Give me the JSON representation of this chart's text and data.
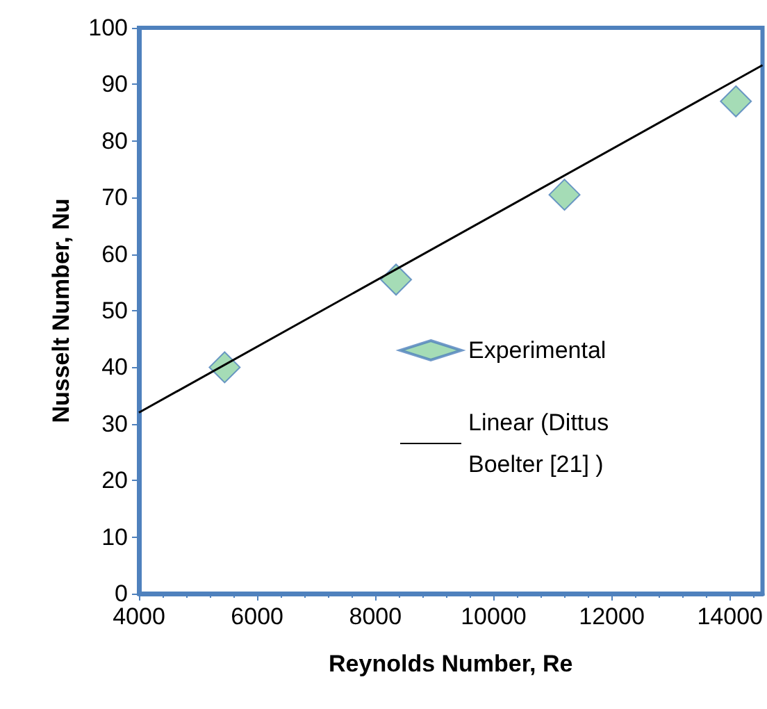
{
  "chart_data": {
    "type": "scatter",
    "xlabel": "Reynolds Number, Re",
    "ylabel": "Nusselt Number, Nu",
    "xlim": [
      4000,
      14550
    ],
    "xticks": [
      4000,
      6000,
      8000,
      10000,
      12000,
      14000
    ],
    "ylim": [
      0,
      100
    ],
    "yticks": [
      0,
      10,
      20,
      30,
      40,
      50,
      60,
      70,
      80,
      90,
      100
    ],
    "grid": false,
    "legend": "right",
    "marker": "diamond",
    "series": [
      {
        "name": "Experimental",
        "color": "#8fd3a4",
        "x": [
          5450,
          8350,
          11200,
          14100
        ],
        "values": [
          40,
          55.5,
          70.5,
          87
        ]
      },
      {
        "name": "Linear (Dittus Boelter [21] )",
        "type": "line",
        "color": "#000000",
        "line_style": "solid",
        "marker": "none",
        "x": [
          4000,
          14550
        ],
        "values": [
          32,
          93.4
        ]
      }
    ]
  }
}
